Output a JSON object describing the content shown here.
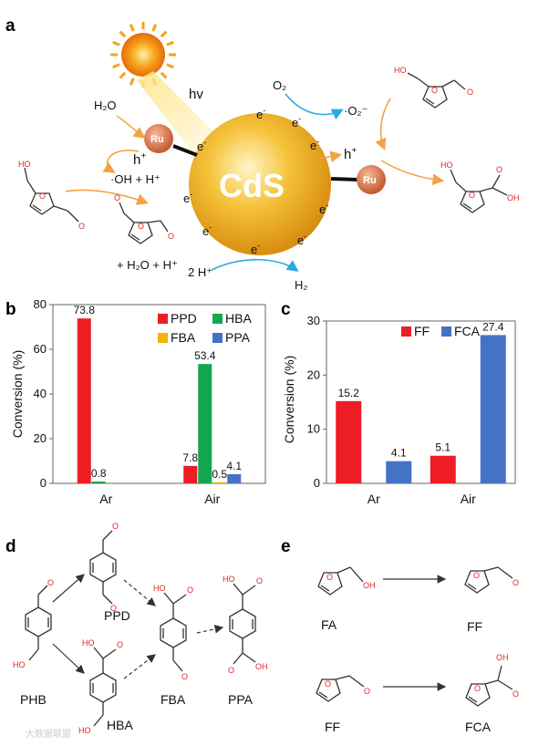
{
  "panels": {
    "a": "a",
    "b": "b",
    "c": "c",
    "d": "d",
    "e": "e"
  },
  "scheme": {
    "catalyst": "CdS",
    "cocatalyst": "Ru",
    "light": "hv",
    "electron": "e",
    "electron_charge": "-",
    "hole": "h",
    "hole_charge": "+",
    "water": "H₂O",
    "hydroxyl": "·OH + H⁺",
    "water_products": "+ H₂O + H⁺",
    "oxygen": "O₂",
    "superoxide": "·O₂⁻",
    "protons": "2 H⁺",
    "hydrogen": "H₂"
  },
  "chem_labels": {
    "oh": "OH",
    "ho": "HO",
    "o": "O"
  },
  "pathway_d": {
    "phb": "PHB",
    "ppd": "PPD",
    "hba": "HBA",
    "fba": "FBA",
    "ppa": "PPA"
  },
  "pathway_e": {
    "fa": "FA",
    "ff": "FF",
    "ff2": "FF",
    "fca": "FCA"
  },
  "watermark": "大数据联盟",
  "colors": {
    "PPD": "#ee1c24",
    "HBA": "#12a650",
    "FBA": "#f5b400",
    "PPA": "#4472c4",
    "FF": "#ee1c24",
    "FCA": "#4472c4",
    "oxygen_atom": "#e0262b",
    "orange_arrow": "#f4a340",
    "blue_arrow": "#29abe2"
  },
  "chart_data": [
    {
      "type": "bar",
      "panel": "b",
      "categories": [
        "Ar",
        "Air"
      ],
      "series": [
        {
          "name": "PPD",
          "values": [
            73.8,
            7.8
          ]
        },
        {
          "name": "HBA",
          "values": [
            0.8,
            53.4
          ]
        },
        {
          "name": "FBA",
          "values": [
            0,
            0.5
          ]
        },
        {
          "name": "PPA",
          "values": [
            0,
            4.1
          ]
        }
      ],
      "labels": [
        [
          "73.8",
          "7.8"
        ],
        [
          "0.8",
          "53.4"
        ],
        [
          "",
          "0.5"
        ],
        [
          "",
          "4.1"
        ]
      ],
      "ylabel": "Conversion (%)",
      "ylim": [
        0,
        80
      ],
      "yticks": [
        0,
        20,
        40,
        60,
        80
      ],
      "grid": false,
      "legend": "top-right"
    },
    {
      "type": "bar",
      "panel": "c",
      "categories": [
        "Ar",
        "Air"
      ],
      "series": [
        {
          "name": "FF",
          "values": [
            15.2,
            5.1
          ]
        },
        {
          "name": "FCA",
          "values": [
            4.1,
            27.4
          ]
        }
      ],
      "labels": [
        [
          "15.2",
          "5.1"
        ],
        [
          "4.1",
          "27.4"
        ]
      ],
      "ylabel": "Conversion (%)",
      "ylim": [
        0,
        30
      ],
      "yticks": [
        0,
        10,
        20,
        30
      ],
      "grid": false,
      "legend": "top-left"
    }
  ]
}
